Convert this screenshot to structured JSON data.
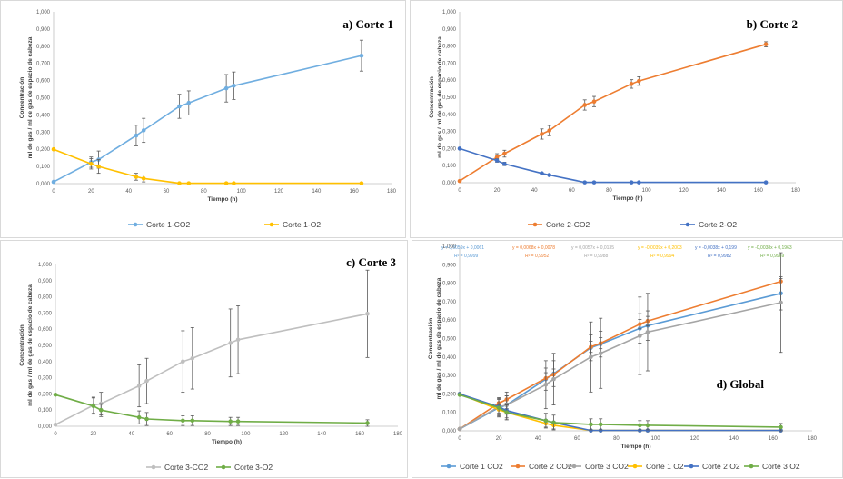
{
  "chart_data": [
    {
      "type": "line",
      "title": "a) Corte 1",
      "xlabel": "Tiempo (h)",
      "ylabel": [
        "Concentración",
        "ml de gas / ml de gas de espacio de cabeza"
      ],
      "xlim": [
        0,
        180
      ],
      "xticks": [
        0,
        20,
        40,
        60,
        80,
        100,
        120,
        140,
        160,
        180
      ],
      "ylim": [
        0,
        1
      ],
      "yticks": [
        "0,000",
        "0,100",
        "0,200",
        "0,300",
        "0,400",
        "0,500",
        "0,600",
        "0,700",
        "0,800",
        "0,900",
        "1,000"
      ],
      "grid": false,
      "legend": "bottom",
      "series": [
        {
          "name": "Corte 1-CO2",
          "color": "#70aee0",
          "x": [
            0,
            20,
            24,
            44,
            48,
            67,
            72,
            92,
            96,
            164
          ],
          "y": [
            0.01,
            0.125,
            0.14,
            0.28,
            0.31,
            0.45,
            0.47,
            0.555,
            0.57,
            0.745
          ],
          "err": [
            0,
            0.03,
            0.05,
            0.06,
            0.07,
            0.07,
            0.07,
            0.08,
            0.08,
            0.09
          ]
        },
        {
          "name": "Corte 1-O2",
          "color": "#ffc000",
          "x": [
            0,
            20,
            24,
            44,
            48,
            67,
            72,
            92,
            96,
            164
          ],
          "y": [
            0.2,
            0.115,
            0.1,
            0.04,
            0.03,
            0.002,
            0.002,
            0.002,
            0.002,
            0.002
          ],
          "err": [
            0,
            0.03,
            0.04,
            0.02,
            0.02,
            0,
            0,
            0,
            0,
            0
          ]
        }
      ]
    },
    {
      "type": "line",
      "title": "b) Corte 2",
      "xlabel": "Tiempo (h)",
      "ylabel": [
        "Concentración",
        "ml de gas / ml de gas de espacio de cabeza"
      ],
      "xlim": [
        0,
        180
      ],
      "xticks": [
        0,
        20,
        40,
        60,
        80,
        100,
        120,
        140,
        160,
        180
      ],
      "ylim": [
        0,
        1
      ],
      "yticks": [
        "0,000",
        "0,100",
        "0,200",
        "0,300",
        "0,400",
        "0,500",
        "0,600",
        "0,700",
        "0,800",
        "0,900",
        "1,000"
      ],
      "grid": false,
      "legend": "bottom",
      "series": [
        {
          "name": "Corte 2-CO2",
          "color": "#ed7d31",
          "x": [
            0,
            20,
            24,
            44,
            48,
            67,
            72,
            92,
            96,
            164
          ],
          "y": [
            0.01,
            0.15,
            0.17,
            0.285,
            0.305,
            0.455,
            0.475,
            0.578,
            0.595,
            0.81
          ],
          "err": [
            0,
            0.02,
            0.02,
            0.03,
            0.03,
            0.03,
            0.03,
            0.025,
            0.025,
            0.015
          ]
        },
        {
          "name": "Corte 2-O2",
          "color": "#4472c4",
          "x": [
            0,
            20,
            24,
            44,
            48,
            67,
            72,
            92,
            96,
            164
          ],
          "y": [
            0.2,
            0.13,
            0.11,
            0.055,
            0.045,
            0.002,
            0.002,
            0.002,
            0.002,
            0.002
          ],
          "err": [
            0,
            0.01,
            0.01,
            0,
            0,
            0,
            0,
            0,
            0,
            0
          ]
        }
      ]
    },
    {
      "type": "line",
      "title": "c) Corte 3",
      "xlabel": "Tiempo (h)",
      "ylabel": [
        "Concentración",
        "ml de gas / ml de gas de espacio de cabeza"
      ],
      "xlim": [
        0,
        180
      ],
      "xticks": [
        0,
        20,
        40,
        60,
        80,
        100,
        120,
        140,
        160,
        180
      ],
      "ylim": [
        0,
        1
      ],
      "yticks": [
        "0,000",
        "0,100",
        "0,200",
        "0,300",
        "0,400",
        "0,500",
        "0,600",
        "0,700",
        "0,800",
        "0,900",
        "1,000"
      ],
      "grid": false,
      "legend": "bottom",
      "series": [
        {
          "name": "Corte 3-CO2",
          "color": "#bfbfbf",
          "x": [
            0,
            20,
            24,
            44,
            48,
            67,
            72,
            92,
            96,
            164
          ],
          "y": [
            0.01,
            0.13,
            0.14,
            0.25,
            0.28,
            0.4,
            0.42,
            0.515,
            0.535,
            0.695
          ],
          "err": [
            0,
            0.05,
            0.07,
            0.13,
            0.14,
            0.19,
            0.19,
            0.21,
            0.21,
            0.27
          ]
        },
        {
          "name": "Corte 3-O2",
          "color": "#70ad47",
          "x": [
            0,
            20,
            24,
            44,
            48,
            67,
            72,
            92,
            96,
            164
          ],
          "y": [
            0.195,
            0.125,
            0.1,
            0.055,
            0.045,
            0.035,
            0.035,
            0.03,
            0.03,
            0.02
          ],
          "err": [
            0,
            0.05,
            0.04,
            0.04,
            0.04,
            0.03,
            0.03,
            0.025,
            0.025,
            0.02
          ]
        }
      ]
    },
    {
      "type": "line",
      "title": "d) Global",
      "xlabel": "Tiempo (h)",
      "ylabel": [
        "Concentración",
        "ml de gas / ml de gas de espacio de cabeza"
      ],
      "xlim": [
        0,
        180
      ],
      "xticks": [
        0,
        20,
        40,
        60,
        80,
        100,
        120,
        140,
        160,
        180
      ],
      "ylim": [
        0,
        1
      ],
      "yticks": [
        "0,000",
        "0,100",
        "0,200",
        "0,300",
        "0,400",
        "0,500",
        "0,600",
        "0,700",
        "0,800",
        "0,900",
        "1,000"
      ],
      "grid": false,
      "legend": "bottom",
      "equations": [
        {
          "eq": "y = 0,0059x + 0,0061",
          "r2": "R² = 0,9999",
          "color": "#5b9bd5"
        },
        {
          "eq": "y = 0,0068x + 0,0078",
          "r2": "R² = 0,9952",
          "color": "#ed7d31"
        },
        {
          "eq": "y = 0,0057x + 0,0135",
          "r2": "R² = 0,9988",
          "color": "#a5a5a5"
        },
        {
          "eq": "y = -0,0039x + 0,2003",
          "r2": "R² = 0,9994",
          "color": "#ffc000"
        },
        {
          "eq": "y = -0,0038x + 0,199",
          "r2": "R² = 0,9982",
          "color": "#4472c4"
        },
        {
          "eq": "y = -0,0038x + 0,1963",
          "r2": "R² = 0,9969",
          "color": "#70ad47"
        }
      ],
      "series": [
        {
          "name": "Corte 1 CO2",
          "color": "#5b9bd5",
          "x": [
            0,
            20,
            24,
            44,
            48,
            67,
            72,
            92,
            96,
            164
          ],
          "y": [
            0.01,
            0.125,
            0.14,
            0.28,
            0.31,
            0.45,
            0.47,
            0.555,
            0.57,
            0.745
          ],
          "err": [
            0,
            0.03,
            0.05,
            0.06,
            0.07,
            0.07,
            0.07,
            0.08,
            0.08,
            0.09
          ]
        },
        {
          "name": "Corte 2 CO2",
          "color": "#ed7d31",
          "x": [
            0,
            20,
            24,
            44,
            48,
            67,
            72,
            92,
            96,
            164
          ],
          "y": [
            0.01,
            0.15,
            0.17,
            0.285,
            0.305,
            0.455,
            0.475,
            0.578,
            0.595,
            0.81
          ],
          "err": [
            0,
            0.02,
            0.02,
            0.03,
            0.03,
            0.03,
            0.03,
            0.025,
            0.025,
            0.015
          ]
        },
        {
          "name": "Corte 3 CO2",
          "color": "#a5a5a5",
          "x": [
            0,
            20,
            24,
            44,
            48,
            67,
            72,
            92,
            96,
            164
          ],
          "y": [
            0.01,
            0.13,
            0.14,
            0.25,
            0.28,
            0.4,
            0.42,
            0.515,
            0.535,
            0.695
          ],
          "err": [
            0,
            0.05,
            0.07,
            0.13,
            0.14,
            0.19,
            0.19,
            0.21,
            0.21,
            0.27
          ]
        },
        {
          "name": "Corte 1 O2",
          "color": "#ffc000",
          "x": [
            0,
            20,
            24,
            44,
            48,
            67,
            72,
            92,
            96,
            164
          ],
          "y": [
            0.2,
            0.115,
            0.1,
            0.04,
            0.03,
            0.002,
            0.002,
            0.002,
            0.002,
            0.002
          ],
          "err": [
            0,
            0.03,
            0.04,
            0.02,
            0.02,
            0,
            0,
            0,
            0,
            0
          ]
        },
        {
          "name": "Corte 2 O2",
          "color": "#4472c4",
          "x": [
            0,
            20,
            24,
            44,
            48,
            67,
            72,
            92,
            96,
            164
          ],
          "y": [
            0.2,
            0.13,
            0.11,
            0.055,
            0.045,
            0.002,
            0.002,
            0.002,
            0.002,
            0.002
          ],
          "err": [
            0,
            0.01,
            0.01,
            0,
            0,
            0,
            0,
            0,
            0,
            0
          ]
        },
        {
          "name": "Corte 3 O2",
          "color": "#70ad47",
          "x": [
            0,
            20,
            24,
            44,
            48,
            67,
            72,
            92,
            96,
            164
          ],
          "y": [
            0.195,
            0.125,
            0.1,
            0.055,
            0.045,
            0.035,
            0.035,
            0.03,
            0.03,
            0.02
          ],
          "err": [
            0,
            0.05,
            0.04,
            0.04,
            0.04,
            0.03,
            0.03,
            0.025,
            0.025,
            0.02
          ]
        }
      ]
    }
  ]
}
